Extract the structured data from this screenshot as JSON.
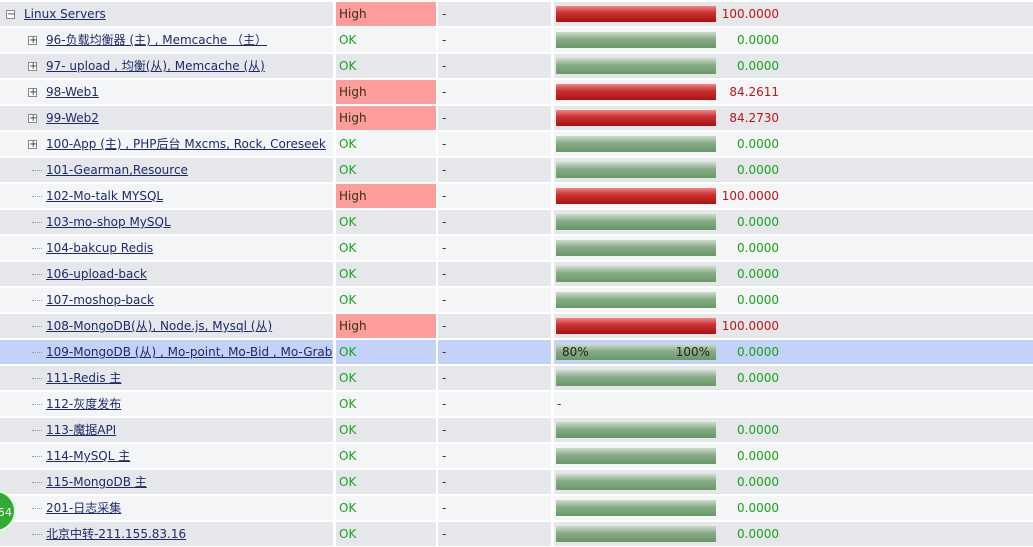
{
  "tree": {
    "rows": [
      {
        "name": "Linux Servers",
        "status": "High",
        "change": "-",
        "value": "100.0000"
      },
      {
        "name": "96-负载均衡器 (主) , Memcache （主）",
        "status": "OK",
        "change": "-",
        "value": "0.0000"
      },
      {
        "name": "97- upload , 均衡(从), Memcache (从)",
        "status": "OK",
        "change": "-",
        "value": "0.0000"
      },
      {
        "name": "98-Web1",
        "status": "High",
        "change": "-",
        "value": "84.2611"
      },
      {
        "name": "99-Web2",
        "status": "High",
        "change": "-",
        "value": "84.2730"
      },
      {
        "name": "100-App (主) , PHP后台 Mxcms, Rock, Coreseek",
        "status": "OK",
        "change": "-",
        "value": "0.0000"
      },
      {
        "name": "101-Gearman,Resource",
        "status": "OK",
        "change": "-",
        "value": "0.0000"
      },
      {
        "name": "102-Mo-talk MYSQL",
        "status": "High",
        "change": "-",
        "value": "100.0000"
      },
      {
        "name": "103-mo-shop MySQL",
        "status": "OK",
        "change": "-",
        "value": "0.0000"
      },
      {
        "name": "104-bakcup Redis",
        "status": "OK",
        "change": "-",
        "value": "0.0000"
      },
      {
        "name": "106-upload-back",
        "status": "OK",
        "change": "-",
        "value": "0.0000"
      },
      {
        "name": "107-moshop-back",
        "status": "OK",
        "change": "-",
        "value": "0.0000"
      },
      {
        "name": "108-MongoDB(从), Node.js, Mysql (从)",
        "status": "High",
        "change": "-",
        "value": "100.0000"
      },
      {
        "name": "109-MongoDB (从) , Mo-point, Mo-Bid , Mo-Grab",
        "status": "OK",
        "change": "-",
        "value": "0.0000",
        "bar_labels": [
          "80%",
          "100%"
        ]
      },
      {
        "name": "111-Redis 主",
        "status": "OK",
        "change": "-",
        "value": "0.0000"
      },
      {
        "name": "112-灰度发布",
        "status": "OK",
        "change": "-",
        "value": "-"
      },
      {
        "name": "113-魔据API",
        "status": "OK",
        "change": "-",
        "value": "0.0000"
      },
      {
        "name": "114-MySQL 主",
        "status": "OK",
        "change": "-",
        "value": "0.0000"
      },
      {
        "name": "115-MongoDB 主",
        "status": "OK",
        "change": "-",
        "value": "0.0000"
      },
      {
        "name": "201-日志采集",
        "status": "OK",
        "change": "-",
        "value": "0.0000"
      },
      {
        "name": "北京中转-211.155.83.16",
        "status": "OK",
        "change": "-",
        "value": "0.0000"
      }
    ],
    "badge": "54"
  }
}
